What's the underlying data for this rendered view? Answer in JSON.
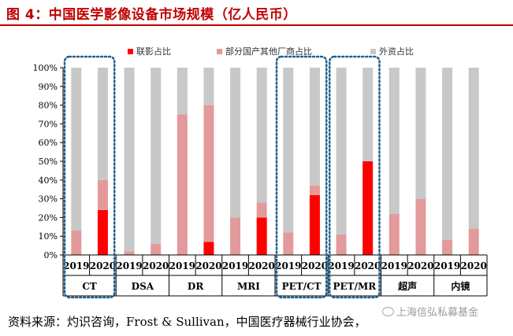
{
  "title": "图 4：中国医学影像设备市场规模（亿人民币）",
  "source": "资料来源：灼识咨询，Frost & Sullivan，中国医疗器械行业协会，",
  "watermark": "上海信弘私募基金",
  "colors": {
    "united": "#ff0000",
    "domestic_other": "#e39a9a",
    "foreign": "#c8c8c8",
    "highlight_box": "#1f5f8b",
    "title": "#c00000"
  },
  "chart_data": {
    "type": "bar",
    "stacked": true,
    "ylim": [
      0,
      100
    ],
    "yticks": [
      "0%",
      "10%",
      "20%",
      "30%",
      "40%",
      "50%",
      "60%",
      "70%",
      "80%",
      "90%",
      "100%"
    ],
    "legend_position": "top",
    "groups": [
      "CT",
      "DSA",
      "DR",
      "MRI",
      "PET/CT",
      "PET/MR",
      "超声",
      "内镜"
    ],
    "years": [
      "2019",
      "2020"
    ],
    "highlighted_groups": [
      "CT",
      "PET/CT",
      "PET/MR"
    ],
    "series": [
      {
        "name": "联影占比",
        "color": "#ff0000",
        "values": [
          0,
          24,
          0,
          0,
          0,
          7,
          0,
          20,
          0,
          32,
          0,
          50,
          0,
          0,
          0,
          0
        ]
      },
      {
        "name": "部分国产其他厂商占比",
        "color": "#e39a9a",
        "values": [
          13,
          16,
          2,
          6,
          75,
          73,
          20,
          8,
          12,
          5,
          11,
          0,
          22,
          30,
          8,
          14
        ]
      },
      {
        "name": "外资占比",
        "color": "#c8c8c8",
        "values": [
          87,
          60,
          98,
          94,
          25,
          20,
          80,
          72,
          88,
          63,
          89,
          50,
          78,
          70,
          92,
          86
        ]
      }
    ]
  }
}
